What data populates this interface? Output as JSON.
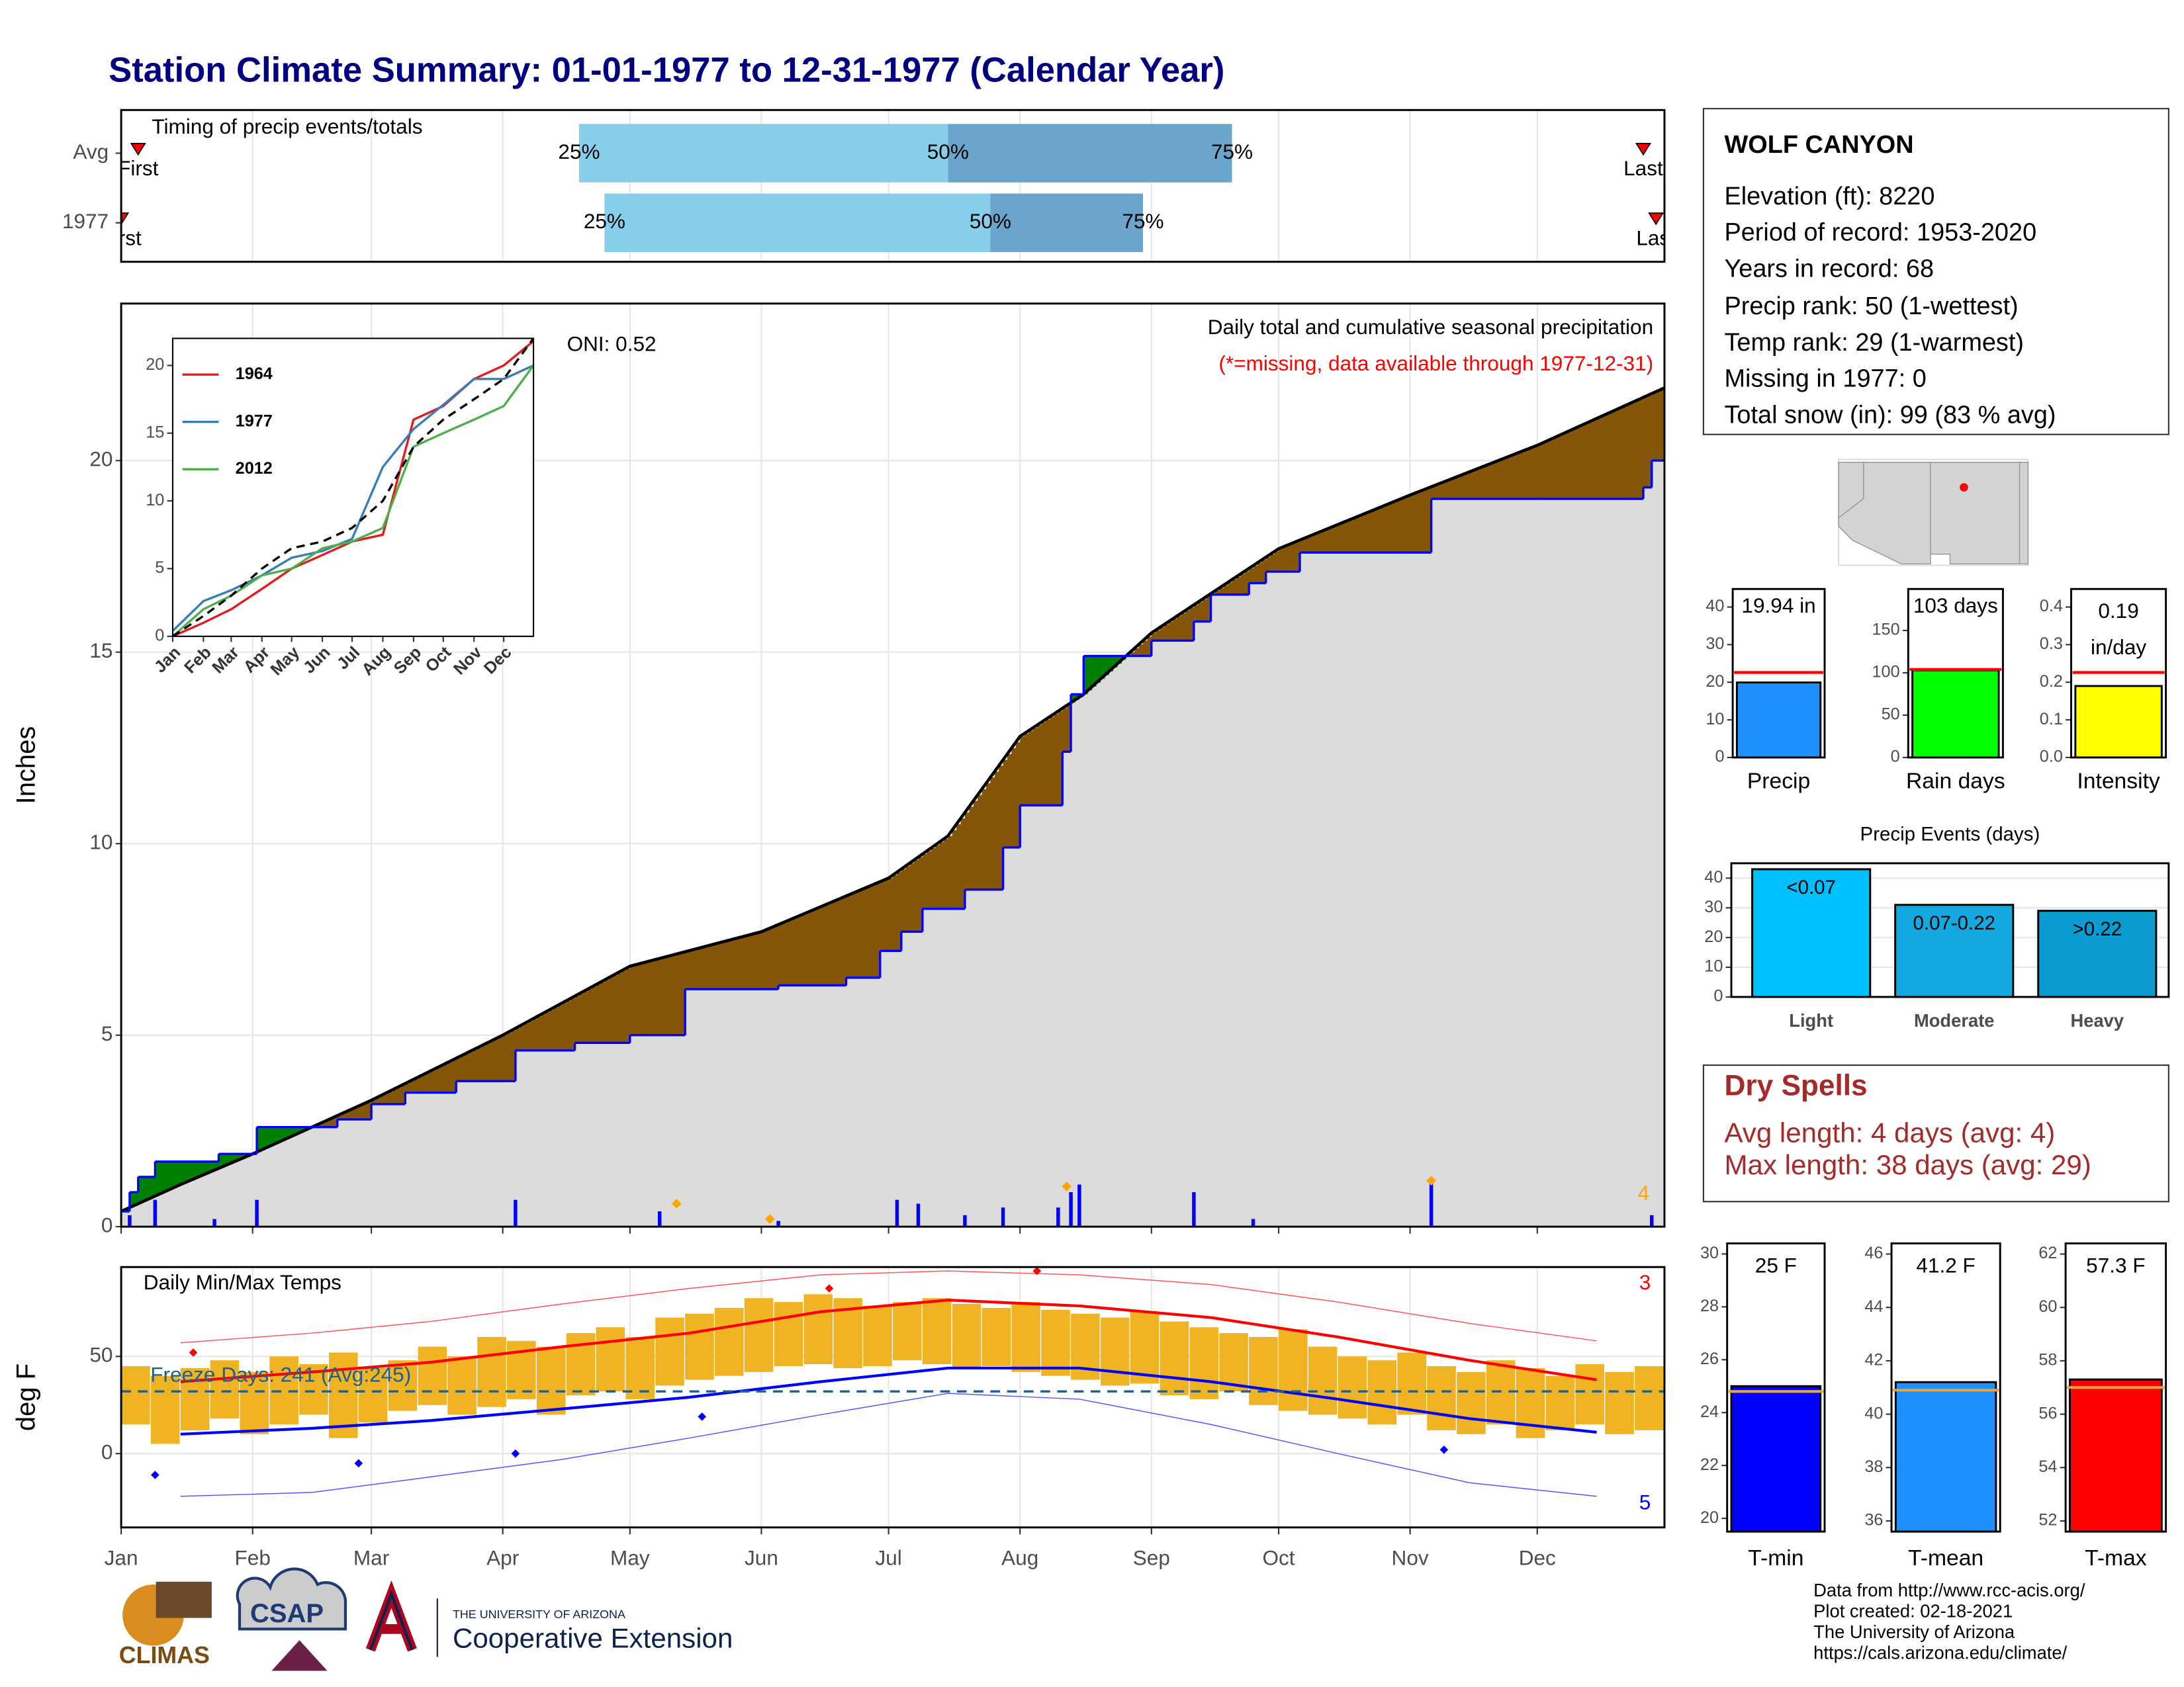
{
  "header": {
    "title": "Station Climate Summary: 01-01-1977 to 12-31-1977 (Calendar Year)"
  },
  "chart_data": [
    {
      "type": "timeline",
      "title": "Timing of precip events/totals",
      "categories": [
        "Avg",
        "1977"
      ],
      "series": [
        {
          "name": "First",
          "color": "#ff0000",
          "values": [
            5,
            1
          ]
        },
        {
          "name": "25%",
          "color": "#87ceeb",
          "values": [
            109,
            115
          ]
        },
        {
          "name": "50%",
          "color": "#6ca5cc",
          "values": [
            196,
            206
          ]
        },
        {
          "name": "75%",
          "color": "#6ca5cc",
          "values": [
            263,
            242
          ]
        },
        {
          "name": "Last",
          "color": "#ff0000",
          "values": [
            360,
            363
          ]
        }
      ],
      "xlim": [
        1,
        365
      ],
      "xticks": [
        1,
        32,
        60,
        91,
        121,
        152,
        182,
        213,
        244,
        274,
        305,
        335
      ],
      "grid": true
    },
    {
      "type": "cumulative",
      "title": "Daily total and cumulative seasonal precipitation",
      "subtitle": "(*=missing, data available through 1977-12-31)",
      "annotation": "ONI: 0.52",
      "extreme_count": 4,
      "y_label": "Inches",
      "xlim": [
        1,
        365
      ],
      "xticks": [
        1,
        32,
        60,
        91,
        121,
        152,
        182,
        213,
        244,
        274,
        305,
        335
      ],
      "ylim": [
        0,
        24.1
      ],
      "yticks": [
        0,
        5,
        10,
        15,
        20
      ],
      "grid": true,
      "above_color": "#008000",
      "below_color": "#85560a",
      "area_color": "#dcdcdc",
      "average": {
        "color": "#000000",
        "x": [
          1,
          15,
          32,
          60,
          91,
          121,
          152,
          182,
          196,
          213,
          228,
          244,
          274,
          305,
          335,
          365
        ],
        "values": [
          0.4,
          1.1,
          1.9,
          3.3,
          5.0,
          6.8,
          7.7,
          9.1,
          10.2,
          12.8,
          13.9,
          15.5,
          17.7,
          19.1,
          20.4,
          21.9
        ]
      },
      "observed": {
        "color": "#0000ff",
        "x": [
          1,
          3,
          5,
          9,
          24,
          33,
          52,
          60,
          68,
          80,
          94,
          108,
          121,
          134,
          156,
          172,
          180,
          185,
          190,
          200,
          209,
          213,
          223,
          225,
          228,
          240,
          244,
          254,
          258,
          267,
          271,
          279,
          303,
          310,
          335,
          360,
          362
        ],
        "values": [
          0.4,
          0.9,
          1.3,
          1.7,
          1.9,
          2.6,
          2.8,
          3.2,
          3.5,
          3.8,
          4.6,
          4.8,
          5.0,
          6.2,
          6.3,
          6.5,
          7.2,
          7.7,
          8.3,
          8.8,
          9.9,
          11.0,
          12.4,
          13.9,
          14.9,
          14.9,
          15.3,
          15.8,
          16.5,
          16.8,
          17.1,
          17.6,
          17.6,
          19.0,
          19.0,
          19.3,
          20.0
        ]
      },
      "daily": {
        "color": "#0000ff",
        "x": [
          3,
          9,
          23,
          33,
          94,
          128,
          156,
          184,
          189,
          200,
          209,
          222,
          225,
          227,
          254,
          268,
          310,
          362
        ],
        "values": [
          0.3,
          0.7,
          0.2,
          0.7,
          0.7,
          0.4,
          0.15,
          0.7,
          0.6,
          0.3,
          0.5,
          0.5,
          0.9,
          1.1,
          0.9,
          0.2,
          1.2,
          0.3
        ]
      },
      "extremes": {
        "color": "#ffa500",
        "x": [
          132,
          154,
          224,
          310
        ],
        "values": [
          0.6,
          0.2,
          1.05,
          1.2
        ]
      }
    },
    {
      "type": "line",
      "xlim": [
        1,
        365
      ],
      "ylim": [
        0,
        22
      ],
      "yticks": [
        0,
        5,
        10,
        15,
        20
      ],
      "xticks": [
        {
          "value": 1,
          "label": "Jan"
        },
        {
          "value": 32,
          "label": "Feb"
        },
        {
          "value": 60,
          "label": "Mar"
        },
        {
          "value": 91,
          "label": "Apr"
        },
        {
          "value": 121,
          "label": "May"
        },
        {
          "value": 152,
          "label": "Jun"
        },
        {
          "value": 182,
          "label": "Jul"
        },
        {
          "value": 213,
          "label": "Aug"
        },
        {
          "value": 244,
          "label": "Sep"
        },
        {
          "value": 274,
          "label": "Oct"
        },
        {
          "value": 305,
          "label": "Nov"
        },
        {
          "value": 335,
          "label": "Dec"
        }
      ],
      "x": [
        1,
        32,
        60,
        91,
        121,
        152,
        182,
        213,
        244,
        274,
        305,
        335,
        365
      ],
      "average": {
        "color": "#000000",
        "values": [
          0,
          1.5,
          3,
          5,
          6.5,
          7,
          8,
          10,
          14,
          16,
          17.5,
          19,
          22
        ]
      },
      "series": [
        {
          "name": "1964",
          "color": "#e41a1c",
          "values": [
            0,
            1,
            2,
            3.5,
            5,
            6,
            7,
            7.5,
            16,
            17,
            19,
            20,
            21.8
          ]
        },
        {
          "name": "1977",
          "color": "#377eb8",
          "values": [
            0.4,
            2.6,
            3.4,
            4.5,
            5.8,
            6.3,
            7.2,
            12.5,
            15.3,
            17.1,
            19.0,
            19.0,
            20.0
          ]
        },
        {
          "name": "2012",
          "color": "#4daf4a",
          "values": [
            0,
            2,
            3,
            4.5,
            5,
            6.5,
            7,
            8,
            14,
            15,
            16,
            17,
            20
          ]
        }
      ]
    },
    {
      "type": "temperature",
      "title": "Daily Min/Max Temps",
      "y_label": "deg F",
      "xlim": [
        1,
        365
      ],
      "ylim": [
        -38,
        96
      ],
      "yticks": [
        0,
        50
      ],
      "grid": true,
      "xticks": [
        {
          "value": 1,
          "label": "Jan"
        },
        {
          "value": 32,
          "label": "Feb"
        },
        {
          "value": 60,
          "label": "Mar"
        },
        {
          "value": 91,
          "label": "Apr"
        },
        {
          "value": 121,
          "label": "May"
        },
        {
          "value": 152,
          "label": "Jun"
        },
        {
          "value": 182,
          "label": "Jul"
        },
        {
          "value": 213,
          "label": "Aug"
        },
        {
          "value": 244,
          "label": "Sep"
        },
        {
          "value": 274,
          "label": "Oct"
        },
        {
          "value": 305,
          "label": "Nov"
        },
        {
          "value": 335,
          "label": "Dec"
        }
      ],
      "bar_color": "#f0b323",
      "bar_days": 7,
      "x": [
        1,
        8,
        15,
        22,
        29,
        36,
        43,
        50,
        57,
        64,
        71,
        78,
        85,
        92,
        99,
        106,
        113,
        120,
        127,
        134,
        141,
        148,
        155,
        162,
        169,
        176,
        183,
        190,
        197,
        204,
        211,
        218,
        225,
        232,
        239,
        246,
        253,
        260,
        267,
        274,
        281,
        288,
        295,
        302,
        309,
        316,
        323,
        330,
        337,
        344,
        351,
        358
      ],
      "max": [
        45,
        40,
        44,
        48,
        42,
        50,
        46,
        52,
        44,
        48,
        55,
        50,
        60,
        58,
        55,
        62,
        65,
        60,
        70,
        72,
        75,
        80,
        78,
        82,
        80,
        76,
        78,
        80,
        77,
        75,
        78,
        74,
        72,
        70,
        73,
        68,
        65,
        62,
        60,
        64,
        55,
        50,
        48,
        52,
        45,
        42,
        48,
        44,
        40,
        46,
        42,
        45
      ],
      "min": [
        15,
        5,
        12,
        18,
        10,
        15,
        20,
        8,
        16,
        22,
        25,
        20,
        24,
        28,
        20,
        30,
        32,
        28,
        35,
        38,
        40,
        42,
        45,
        46,
        44,
        45,
        48,
        46,
        44,
        45,
        42,
        40,
        38,
        35,
        36,
        30,
        28,
        32,
        25,
        22,
        20,
        18,
        15,
        20,
        12,
        10,
        15,
        8,
        12,
        15,
        10,
        12
      ],
      "normal": {
        "x": [
          15,
          46,
          74,
          105,
          135,
          166,
          196,
          227,
          258,
          288,
          319,
          349
        ],
        "max": [
          37,
          42,
          47,
          55,
          62,
          73,
          79,
          76,
          70,
          60,
          48,
          38
        ],
        "min": [
          10,
          13,
          17,
          23,
          29,
          37,
          44,
          44,
          37,
          28,
          18,
          11
        ]
      },
      "records": {
        "x": [
          15,
          46,
          74,
          105,
          135,
          166,
          196,
          227,
          258,
          288,
          319,
          349
        ],
        "max": [
          57,
          62,
          68,
          77,
          85,
          92,
          94,
          92,
          87,
          78,
          67,
          58
        ],
        "min": [
          -22,
          -20,
          -12,
          -3,
          8,
          20,
          31,
          28,
          15,
          0,
          -15,
          -22
        ]
      },
      "record_highs": {
        "x": [
          18,
          168,
          217
        ],
        "values": [
          52,
          85,
          94
        ]
      },
      "record_lows": {
        "x": [
          9,
          57,
          94,
          138,
          313
        ],
        "values": [
          -11,
          -5,
          0,
          19,
          2
        ]
      },
      "record_high_count": 3,
      "record_low_count": 5,
      "freeze_line": 32,
      "freeze_note": "Freeze Days: 241 (Avg:245)"
    },
    {
      "type": "bar",
      "categories": [
        "Precip"
      ],
      "values": [
        19.94
      ],
      "value_labels": [
        "19.94 in"
      ],
      "color": "#1e90ff",
      "average": 22.6,
      "average_color": "#ff0000",
      "ylim": [
        0,
        44.8
      ],
      "yticks": [
        0,
        10,
        20,
        30,
        40
      ]
    },
    {
      "type": "bar",
      "categories": [
        "Rain days"
      ],
      "values": [
        103
      ],
      "value_labels": [
        "103 days"
      ],
      "color": "#00ff00",
      "average": 104,
      "average_color": "#ff0000",
      "ylim": [
        0,
        199
      ],
      "yticks": [
        0,
        50,
        100,
        150
      ]
    },
    {
      "type": "bar",
      "categories": [
        "Intensity"
      ],
      "values": [
        0.19
      ],
      "value_labels": [
        "0.19 in/day"
      ],
      "color": "#ffff00",
      "average": 0.226,
      "average_color": "#ff0000",
      "ylim": [
        0,
        0.448
      ],
      "yticks": [
        {
          "value": 0,
          "label": "0.0"
        },
        0.1,
        0.2,
        0.3,
        0.4
      ]
    },
    {
      "type": "bar",
      "title": "Precip Events (days)",
      "categories": [
        "Light",
        "Moderate",
        "Heavy"
      ],
      "values": [
        43,
        31,
        29
      ],
      "bar_labels": [
        "<0.07",
        "0.07-0.22",
        ">0.22"
      ],
      "colors": [
        "#00bfff",
        "#14a8e0",
        "#0a9bd0"
      ],
      "ylim": [
        0,
        45
      ],
      "yticks": [
        0,
        10,
        20,
        30,
        40
      ],
      "grid": true
    },
    {
      "type": "bar",
      "categories": [
        "T-min"
      ],
      "values": [
        25
      ],
      "value_labels": [
        "25 F"
      ],
      "color": "#0000ff",
      "average": 24.8,
      "average_color": "#e8a33d",
      "ylim": [
        19.5,
        30.4
      ],
      "yticks": [
        20,
        22,
        24,
        26,
        28,
        30
      ]
    },
    {
      "type": "bar",
      "categories": [
        "T-mean"
      ],
      "values": [
        41.2
      ],
      "value_labels": [
        "41.2 F"
      ],
      "color": "#1e90ff",
      "average": 40.9,
      "average_color": "#e8a33d",
      "ylim": [
        35.6,
        46.4
      ],
      "yticks": [
        36,
        38,
        40,
        42,
        44,
        46
      ]
    },
    {
      "type": "bar",
      "categories": [
        "T-max"
      ],
      "values": [
        57.3
      ],
      "value_labels": [
        "57.3 F"
      ],
      "color": "#ff0000",
      "average": 57.0,
      "average_color": "#e8a33d",
      "ylim": [
        51.6,
        62.4
      ],
      "yticks": [
        52,
        54,
        56,
        58,
        60,
        62
      ]
    }
  ],
  "station": {
    "name": "WOLF CANYON",
    "lines": [
      "Elevation (ft): 8220",
      "Period of record: 1953-2020",
      "Years in record: 68",
      "Precip rank: 50 (1-wettest)",
      "Temp rank: 29 (1-warmest)",
      "Missing in 1977: 0",
      "Total snow (in): 99 (83 % avg)"
    ]
  },
  "dry_spells": {
    "title": "Dry Spells",
    "lines": [
      "Avg length: 4 days (avg: 4)",
      "Max length: 38 days (avg: 29)"
    ]
  },
  "credits": [
    "Data from http://www.rcc-acis.org/",
    "Plot created: 02-18-2021",
    "The University of Arizona",
    "https://cals.arizona.edu/climate/"
  ],
  "logos": {
    "climas": "CLIMAS",
    "csap": "CSAP",
    "university": "THE UNIVERSITY OF ARIZONA",
    "extension": "Cooperative Extension"
  }
}
